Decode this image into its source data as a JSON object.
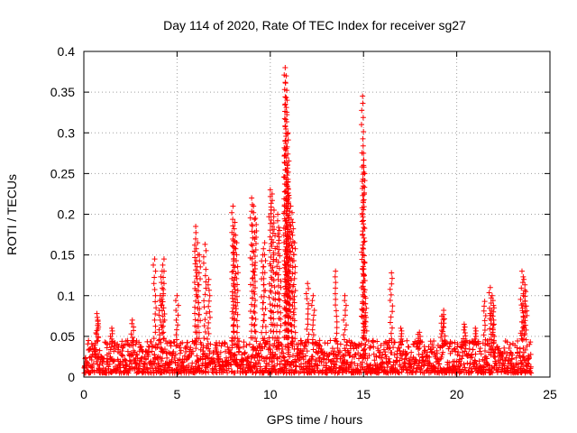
{
  "chart_data": {
    "type": "scatter",
    "title": "Day 114 of 2020, Rate Of TEC Index for receiver sg27",
    "xlabel": "GPS time / hours",
    "ylabel": "ROTI / TECUs",
    "xlim": [
      0,
      25
    ],
    "ylim": [
      0,
      0.4
    ],
    "grid": true,
    "marker": "+",
    "x_ticks": [
      "0",
      "5",
      "10",
      "15",
      "20",
      "25"
    ],
    "y_ticks": [
      "0",
      "0.05",
      "0.1",
      "0.15",
      "0.2",
      "0.25",
      "0.3",
      "0.35",
      "0.4"
    ],
    "series": [
      {
        "name": "ROTI",
        "color": "#ff0000",
        "baseline": {
          "hours_start": 0,
          "hours_end": 24,
          "step": 0.05,
          "typical_min": 0.005,
          "typical_max": 0.045
        },
        "peaks": [
          {
            "x": 0.7,
            "y": 0.078
          },
          {
            "x": 0.75,
            "y": 0.07
          },
          {
            "x": 1.5,
            "y": 0.06
          },
          {
            "x": 2.6,
            "y": 0.07
          },
          {
            "x": 3.8,
            "y": 0.145
          },
          {
            "x": 4.1,
            "y": 0.1
          },
          {
            "x": 4.3,
            "y": 0.145
          },
          {
            "x": 4.2,
            "y": 0.13
          },
          {
            "x": 5.0,
            "y": 0.1
          },
          {
            "x": 6.0,
            "y": 0.185
          },
          {
            "x": 6.1,
            "y": 0.165
          },
          {
            "x": 6.2,
            "y": 0.15
          },
          {
            "x": 6.5,
            "y": 0.163
          },
          {
            "x": 6.7,
            "y": 0.12
          },
          {
            "x": 8.0,
            "y": 0.21
          },
          {
            "x": 8.1,
            "y": 0.19
          },
          {
            "x": 8.05,
            "y": 0.175
          },
          {
            "x": 8.2,
            "y": 0.165
          },
          {
            "x": 9.0,
            "y": 0.22
          },
          {
            "x": 9.1,
            "y": 0.21
          },
          {
            "x": 9.2,
            "y": 0.195
          },
          {
            "x": 9.7,
            "y": 0.165
          },
          {
            "x": 9.6,
            "y": 0.15
          },
          {
            "x": 10.0,
            "y": 0.23
          },
          {
            "x": 10.1,
            "y": 0.225
          },
          {
            "x": 10.2,
            "y": 0.205
          },
          {
            "x": 10.4,
            "y": 0.2
          },
          {
            "x": 10.5,
            "y": 0.18
          },
          {
            "x": 10.8,
            "y": 0.38
          },
          {
            "x": 10.85,
            "y": 0.37
          },
          {
            "x": 10.9,
            "y": 0.34
          },
          {
            "x": 10.95,
            "y": 0.3
          },
          {
            "x": 10.8,
            "y": 0.28
          },
          {
            "x": 10.9,
            "y": 0.26
          },
          {
            "x": 10.95,
            "y": 0.24
          },
          {
            "x": 11.0,
            "y": 0.22
          },
          {
            "x": 11.1,
            "y": 0.21
          },
          {
            "x": 11.2,
            "y": 0.19
          },
          {
            "x": 11.3,
            "y": 0.165
          },
          {
            "x": 12.0,
            "y": 0.115
          },
          {
            "x": 12.3,
            "y": 0.1
          },
          {
            "x": 13.5,
            "y": 0.13
          },
          {
            "x": 14.0,
            "y": 0.1
          },
          {
            "x": 14.95,
            "y": 0.345
          },
          {
            "x": 15.0,
            "y": 0.275
          },
          {
            "x": 15.0,
            "y": 0.26
          },
          {
            "x": 15.05,
            "y": 0.14
          },
          {
            "x": 15.1,
            "y": 0.09
          },
          {
            "x": 16.5,
            "y": 0.128
          },
          {
            "x": 17.0,
            "y": 0.06
          },
          {
            "x": 18.0,
            "y": 0.055
          },
          {
            "x": 19.3,
            "y": 0.082
          },
          {
            "x": 19.2,
            "y": 0.075
          },
          {
            "x": 20.4,
            "y": 0.065
          },
          {
            "x": 21.0,
            "y": 0.06
          },
          {
            "x": 21.5,
            "y": 0.093
          },
          {
            "x": 21.8,
            "y": 0.11
          },
          {
            "x": 21.9,
            "y": 0.1
          },
          {
            "x": 22.0,
            "y": 0.085
          },
          {
            "x": 23.5,
            "y": 0.13
          },
          {
            "x": 23.6,
            "y": 0.12
          },
          {
            "x": 23.7,
            "y": 0.105
          },
          {
            "x": 23.55,
            "y": 0.09
          }
        ]
      }
    ]
  }
}
